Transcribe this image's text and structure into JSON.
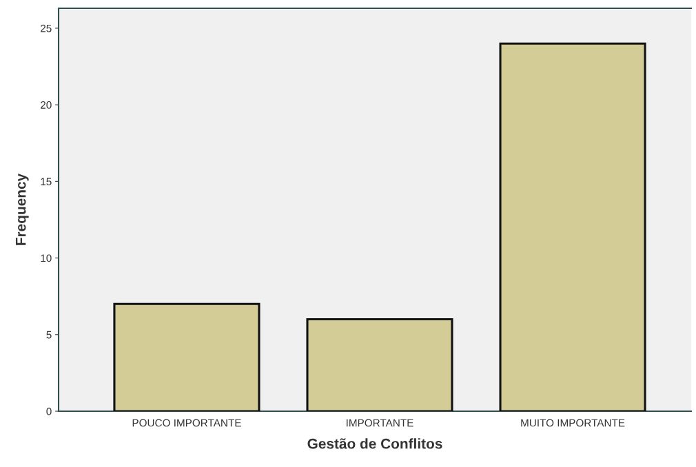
{
  "chart_data": {
    "type": "bar",
    "xlabel": "Gestão de Conflitos",
    "ylabel": "Frequency",
    "categories": [
      "POUCO IMPORTANTE",
      "IMPORTANTE",
      "MUITO IMPORTANTE"
    ],
    "values": [
      7,
      6,
      24
    ],
    "color": "#d3cc97",
    "ylim": [
      0,
      26.3
    ],
    "yticks": [
      0,
      5,
      10,
      15,
      20,
      25
    ],
    "grid": false,
    "legend": false
  }
}
